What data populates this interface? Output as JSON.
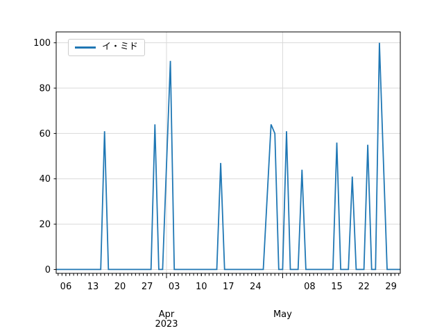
{
  "chart_data": {
    "type": "line",
    "title": "",
    "xlabel": "",
    "ylabel": "",
    "legend": {
      "position": "upper-left",
      "label": "イ・ミド"
    },
    "grid": true,
    "ylim": [
      -1.7,
      104.8
    ],
    "xlim_days_from_apr1": [
      -28.5,
      60.4
    ],
    "yticks": [
      0,
      20,
      40,
      60,
      80,
      100
    ],
    "ytick_labels": [
      "0",
      "20",
      "40",
      "60",
      "80",
      "100"
    ],
    "xticks_weekly": [
      {
        "date": "2023-03-06",
        "label": "06"
      },
      {
        "date": "2023-03-13",
        "label": "13"
      },
      {
        "date": "2023-03-20",
        "label": "20"
      },
      {
        "date": "2023-03-27",
        "label": "27"
      },
      {
        "date": "2023-04-03",
        "label": "03"
      },
      {
        "date": "2023-04-10",
        "label": "10"
      },
      {
        "date": "2023-04-17",
        "label": "17"
      },
      {
        "date": "2023-04-24",
        "label": "24"
      },
      {
        "date": "2023-05-08",
        "label": "08"
      },
      {
        "date": "2023-05-15",
        "label": "15"
      },
      {
        "date": "2023-05-22",
        "label": "22"
      },
      {
        "date": "2023-05-29",
        "label": "29"
      }
    ],
    "xticks_major": [
      {
        "date": "2023-04-01",
        "line1": "Apr",
        "line2": "2023"
      },
      {
        "date": "2023-05-01",
        "line1": "May",
        "line2": ""
      }
    ],
    "minor_ticks": {
      "start": "2023-03-04",
      "end": "2023-05-31",
      "interval_days": 1
    },
    "series": [
      {
        "name": "イ・ミド",
        "color": "#1f77b4",
        "points": [
          [
            "2023-03-03",
            0
          ],
          [
            "2023-03-15",
            0
          ],
          [
            "2023-03-16",
            61
          ],
          [
            "2023-03-17",
            0
          ],
          [
            "2023-03-28",
            0
          ],
          [
            "2023-03-29",
            64
          ],
          [
            "2023-03-30",
            0
          ],
          [
            "2023-03-31",
            0
          ],
          [
            "2023-04-02",
            92
          ],
          [
            "2023-04-03",
            0
          ],
          [
            "2023-04-14",
            0
          ],
          [
            "2023-04-15",
            47
          ],
          [
            "2023-04-16",
            0
          ],
          [
            "2023-04-26",
            0
          ],
          [
            "2023-04-28",
            64
          ],
          [
            "2023-04-29",
            60
          ],
          [
            "2023-04-30",
            0
          ],
          [
            "2023-05-01",
            0
          ],
          [
            "2023-05-02",
            61
          ],
          [
            "2023-05-03",
            0
          ],
          [
            "2023-05-05",
            0
          ],
          [
            "2023-05-06",
            44
          ],
          [
            "2023-05-07",
            0
          ],
          [
            "2023-05-14",
            0
          ],
          [
            "2023-05-15",
            56
          ],
          [
            "2023-05-16",
            0
          ],
          [
            "2023-05-18",
            0
          ],
          [
            "2023-05-19",
            41
          ],
          [
            "2023-05-20",
            0
          ],
          [
            "2023-05-22",
            0
          ],
          [
            "2023-05-23",
            55
          ],
          [
            "2023-05-24",
            0
          ],
          [
            "2023-05-25",
            0
          ],
          [
            "2023-05-26",
            100
          ],
          [
            "2023-05-28",
            0
          ],
          [
            "2023-06-01",
            0
          ]
        ]
      }
    ],
    "colors": {
      "line": "#1f77b4",
      "grid": "#d9d9d9",
      "spine": "#000000",
      "tick": "#000000",
      "legend_border": "#cccccc",
      "background": "#ffffff"
    }
  }
}
